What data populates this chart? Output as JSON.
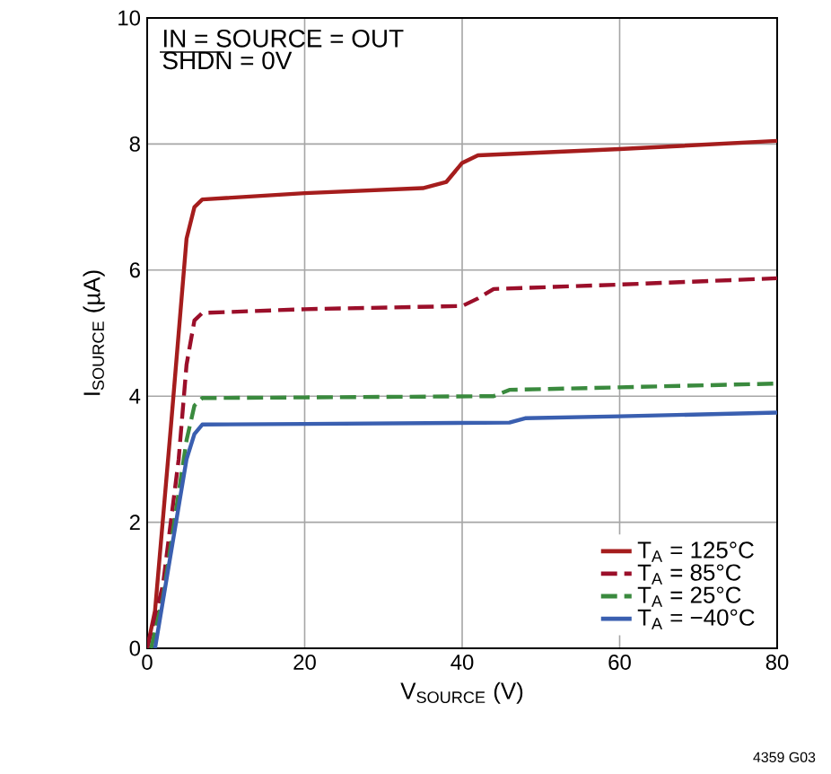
{
  "chart_data": {
    "type": "line",
    "xlabel": "V$_{SOURCE}$ (V)",
    "ylabel": "I$_{SOURCE}$ (µA)",
    "annotations": [
      "IN = SOURCE = OUT",
      "SHDN = 0V",
      "4359 G03"
    ],
    "xlim": [
      0,
      80
    ],
    "ylim": [
      0,
      10
    ],
    "xticks": [
      0,
      20,
      40,
      60,
      80
    ],
    "yticks": [
      0,
      2,
      4,
      6,
      8,
      10
    ],
    "grid": true,
    "legend": "bottom right",
    "marker": "none",
    "series": [
      {
        "name": "T$_{A}$ = 125°C",
        "color": "#a51d1d",
        "line_style": "solid",
        "x": [
          0,
          1,
          3,
          5,
          6,
          7,
          20,
          35,
          38,
          40,
          42,
          60,
          80
        ],
        "values": [
          0,
          0.6,
          3.5,
          6.5,
          7.0,
          7.12,
          7.22,
          7.3,
          7.4,
          7.7,
          7.82,
          7.92,
          8.05
        ]
      },
      {
        "name": "T$_{A}$ = 85°C",
        "color": "#9b0f2a",
        "line_style": "dashed",
        "x": [
          0,
          2,
          4,
          5,
          6,
          7,
          20,
          40,
          42,
          44,
          60,
          80
        ],
        "values": [
          0,
          1,
          3,
          4.5,
          5.2,
          5.32,
          5.38,
          5.43,
          5.55,
          5.7,
          5.77,
          5.87
        ]
      },
      {
        "name": "T$_{A}$ = 25°C",
        "color": "#3a8a3e",
        "line_style": "dashed",
        "x": [
          0.5,
          2,
          5,
          6,
          7,
          20,
          44,
          46,
          60,
          80
        ],
        "values": [
          0,
          0.8,
          3.3,
          3.85,
          3.97,
          3.98,
          4.0,
          4.1,
          4.14,
          4.2
        ]
      },
      {
        "name": "T$_{A}$ = −40°C",
        "color": "#3a5fb0",
        "line_style": "solid",
        "x": [
          1,
          3,
          5,
          6,
          7,
          20,
          46,
          48,
          60,
          80
        ],
        "values": [
          0,
          1.5,
          3,
          3.4,
          3.55,
          3.56,
          3.58,
          3.65,
          3.68,
          3.74
        ]
      }
    ]
  }
}
